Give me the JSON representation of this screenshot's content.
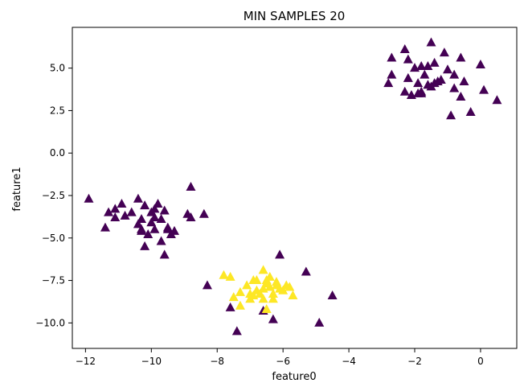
{
  "chart_data": {
    "type": "scatter",
    "title": "MIN SAMPLES 20",
    "xlabel": "feature0",
    "ylabel": "feature1",
    "xlim": [
      -12.4,
      1.1
    ],
    "ylim": [
      -11.5,
      7.4
    ],
    "xticks": [
      -12,
      -10,
      -8,
      -6,
      -4,
      -2,
      0
    ],
    "yticks": [
      5.0,
      2.5,
      0.0,
      -2.5,
      -5.0,
      -7.5,
      -10.0
    ],
    "xtick_labels": [
      "−12",
      "−10",
      "−8",
      "−6",
      "−4",
      "−2",
      "0"
    ],
    "ytick_labels": [
      "5.0",
      "2.5",
      "0.0",
      "−2.5",
      "−5.0",
      "−7.5",
      "−10.0"
    ],
    "grid": false,
    "marker": "triangle",
    "colors": {
      "noise": "#440154",
      "cluster": "#fde725",
      "frame": "#000000"
    },
    "series": [
      {
        "color": "#440154",
        "points": [
          [
            -2.7,
            5.6
          ],
          [
            -2.3,
            6.1
          ],
          [
            -1.5,
            6.5
          ],
          [
            -1.1,
            5.9
          ],
          [
            -0.6,
            5.6
          ],
          [
            0.0,
            5.2
          ],
          [
            -2.2,
            5.5
          ],
          [
            -2.0,
            5.0
          ],
          [
            -1.8,
            5.1
          ],
          [
            -1.6,
            5.1
          ],
          [
            -1.4,
            5.3
          ],
          [
            -2.7,
            4.6
          ],
          [
            -2.2,
            4.4
          ],
          [
            -1.9,
            4.1
          ],
          [
            -1.7,
            4.6
          ],
          [
            -1.4,
            4.1
          ],
          [
            -1.2,
            4.3
          ],
          [
            -1.0,
            4.9
          ],
          [
            -0.8,
            4.6
          ],
          [
            -0.5,
            4.2
          ],
          [
            -2.8,
            4.1
          ],
          [
            -2.3,
            3.6
          ],
          [
            -2.1,
            3.4
          ],
          [
            -1.8,
            3.6
          ],
          [
            -1.5,
            3.9
          ],
          [
            -1.3,
            4.2
          ],
          [
            -0.8,
            3.8
          ],
          [
            -0.6,
            3.3
          ],
          [
            -0.3,
            2.4
          ],
          [
            0.1,
            3.7
          ],
          [
            0.5,
            3.1
          ],
          [
            -0.9,
            2.2
          ],
          [
            -1.8,
            3.5
          ],
          [
            -1.9,
            3.5
          ],
          [
            -1.6,
            4.0
          ],
          [
            -11.9,
            -2.7
          ],
          [
            -11.3,
            -3.5
          ],
          [
            -10.9,
            -3.0
          ],
          [
            -11.1,
            -3.8
          ],
          [
            -10.4,
            -2.7
          ],
          [
            -10.2,
            -3.1
          ],
          [
            -9.8,
            -3.0
          ],
          [
            -9.6,
            -3.4
          ],
          [
            -9.9,
            -3.8
          ],
          [
            -10.6,
            -3.5
          ],
          [
            -10.3,
            -3.9
          ],
          [
            -10.0,
            -4.1
          ],
          [
            -9.7,
            -3.9
          ],
          [
            -11.1,
            -3.3
          ],
          [
            -11.4,
            -4.4
          ],
          [
            -10.8,
            -3.7
          ],
          [
            -10.4,
            -4.2
          ],
          [
            -10.3,
            -4.5
          ],
          [
            -9.9,
            -4.5
          ],
          [
            -9.5,
            -4.5
          ],
          [
            -8.9,
            -3.6
          ],
          [
            -8.4,
            -3.6
          ],
          [
            -8.8,
            -2.0
          ],
          [
            -9.9,
            -3.3
          ],
          [
            -10.3,
            -4.6
          ],
          [
            -9.4,
            -4.8
          ],
          [
            -9.5,
            -4.4
          ],
          [
            -10.1,
            -4.8
          ],
          [
            -10.2,
            -5.5
          ],
          [
            -9.7,
            -5.2
          ],
          [
            -9.6,
            -6.0
          ],
          [
            -9.3,
            -4.6
          ],
          [
            -8.8,
            -3.8
          ],
          [
            -10.0,
            -3.5
          ],
          [
            -8.3,
            -7.8
          ],
          [
            -7.6,
            -9.1
          ],
          [
            -7.4,
            -10.5
          ],
          [
            -6.3,
            -9.8
          ],
          [
            -6.1,
            -6.0
          ],
          [
            -5.3,
            -7.0
          ],
          [
            -4.9,
            -10.0
          ],
          [
            -4.5,
            -8.4
          ],
          [
            -6.6,
            -9.3
          ]
        ]
      },
      {
        "color": "#fde725",
        "points": [
          [
            -7.8,
            -7.2
          ],
          [
            -7.6,
            -7.3
          ],
          [
            -7.5,
            -8.5
          ],
          [
            -7.3,
            -8.2
          ],
          [
            -7.1,
            -7.8
          ],
          [
            -7.0,
            -8.3
          ],
          [
            -6.9,
            -7.5
          ],
          [
            -6.8,
            -7.5
          ],
          [
            -6.6,
            -8.0
          ],
          [
            -6.4,
            -7.9
          ],
          [
            -6.2,
            -7.6
          ],
          [
            -6.0,
            -8.1
          ],
          [
            -5.8,
            -7.9
          ],
          [
            -5.7,
            -8.4
          ],
          [
            -6.5,
            -7.7
          ],
          [
            -6.7,
            -8.3
          ],
          [
            -6.9,
            -8.4
          ],
          [
            -7.3,
            -9.0
          ],
          [
            -6.6,
            -8.6
          ],
          [
            -6.3,
            -8.3
          ],
          [
            -6.1,
            -8.0
          ],
          [
            -6.5,
            -7.5
          ],
          [
            -6.4,
            -7.3
          ],
          [
            -6.6,
            -6.9
          ],
          [
            -7.0,
            -8.6
          ],
          [
            -6.5,
            -9.2
          ],
          [
            -6.3,
            -8.6
          ],
          [
            -6.2,
            -7.8
          ],
          [
            -6.8,
            -8.1
          ],
          [
            -5.9,
            -7.8
          ]
        ]
      }
    ]
  }
}
